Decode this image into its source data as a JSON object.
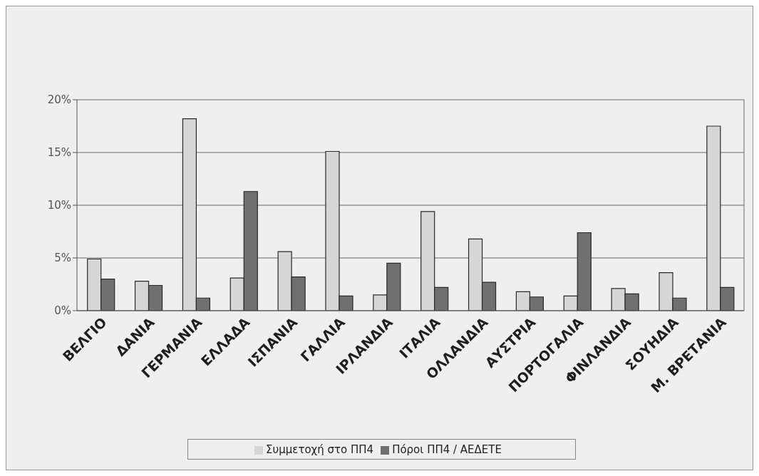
{
  "chart_data": {
    "type": "bar",
    "categories": [
      "ΒΕΛΓΙΟ",
      "ΔΑΝΙΑ",
      "ΓΕΡΜΑΝΙΑ",
      "ΕΛΛΑΔΑ",
      "ΙΣΠΑΝΙΑ",
      "ΓΑΛΛΙΑ",
      "ΙΡΛΑΝΔΙΑ",
      "ΙΤΑΛΙΑ",
      "ΟΛΛΑΝΔΙΑ",
      "ΑΥΣΤΡΙΑ",
      "ΠΟΡΤΟΓΑΛΙΑ",
      "ΦΙΝΛΑΝΔΙΑ",
      "ΣΟΥΗΔΙΑ",
      "Μ. ΒΡΕΤΑΝΙΑ"
    ],
    "series": [
      {
        "name": "Συμμετοχή στο ΠΠ4",
        "color": "#d6d6d6",
        "values": [
          4.9,
          2.8,
          18.2,
          3.1,
          5.6,
          15.1,
          1.5,
          9.4,
          6.8,
          1.8,
          1.4,
          2.1,
          3.6,
          17.5
        ]
      },
      {
        "name": "Πόροι ΠΠ4 / ΑΕΔΕΤΕ",
        "color": "#707070",
        "values": [
          3.0,
          2.4,
          1.2,
          11.3,
          3.2,
          1.4,
          4.5,
          2.2,
          2.7,
          1.3,
          7.4,
          1.6,
          1.2,
          2.2
        ]
      }
    ],
    "ylim": [
      0,
      20
    ],
    "yticks": [
      {
        "value": 0,
        "label": "0%"
      },
      {
        "value": 5,
        "label": "5%"
      },
      {
        "value": 10,
        "label": "10%"
      },
      {
        "value": 15,
        "label": "15%"
      },
      {
        "value": 20,
        "label": "20%"
      }
    ],
    "grid": "y",
    "legend": "bottom"
  }
}
